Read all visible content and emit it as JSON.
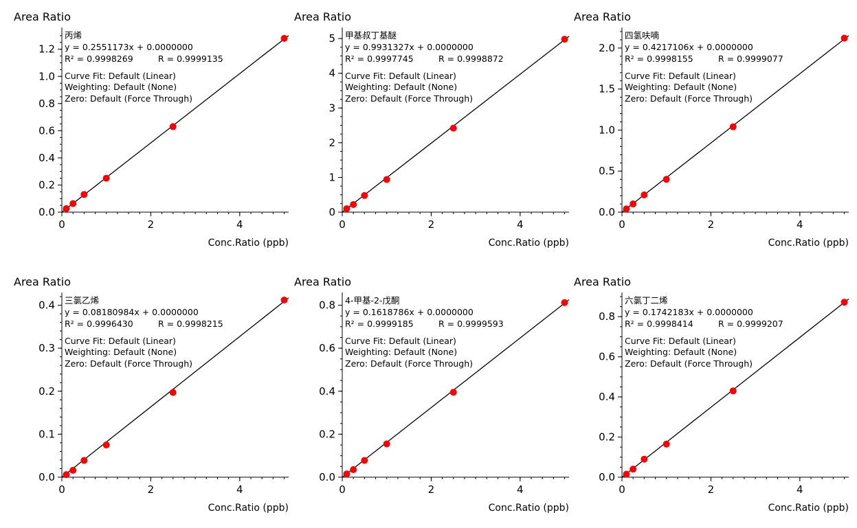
{
  "chart_data": [
    {
      "type": "scatter",
      "ylabel": "Area Ratio",
      "xlabel": "Conc.Ratio (ppb)",
      "compound": "丙烯",
      "equation": "y = 0.2551173x + 0.0000000",
      "r2_text": "R² = 0.9998269",
      "r_text": "R = 0.9999135",
      "curve_fit": "Curve Fit: Default (Linear)",
      "weighting": "Weighting: Default (None)",
      "zero": "Zero: Default (Force Through)",
      "slope": 0.2551173,
      "intercept": 0,
      "xlim": [
        0,
        5.1
      ],
      "ylim": [
        0,
        1.33
      ],
      "xticks": [
        {
          "v": 0,
          "label": "0"
        },
        {
          "v": 2,
          "label": "2"
        },
        {
          "v": 4,
          "label": "4"
        }
      ],
      "yticks": [
        {
          "v": 0,
          "label": "0.0"
        },
        {
          "v": 0.2,
          "label": "0.2"
        },
        {
          "v": 0.4,
          "label": "0.4"
        },
        {
          "v": 0.6,
          "label": "0.6"
        },
        {
          "v": 0.8,
          "label": "0.8"
        },
        {
          "v": 1.0,
          "label": "1.0"
        },
        {
          "v": 1.2,
          "label": "1.2"
        }
      ],
      "y_minor_step": 0.05,
      "x": [
        0.1,
        0.25,
        0.5,
        1.0,
        2.5,
        5.0
      ],
      "y": [
        0.026,
        0.063,
        0.13,
        0.25,
        0.63,
        1.28
      ],
      "point_color": "#ff0000",
      "line_color": "#000000"
    },
    {
      "type": "scatter",
      "ylabel": "Area Ratio",
      "xlabel": "Conc.Ratio (ppb)",
      "compound": "甲基叔丁基醚",
      "equation": "y = 0.9931327x + 0.0000000",
      "r2_text": "R² = 0.9997745",
      "r_text": "R = 0.9998872",
      "curve_fit": "Curve Fit: Default (Linear)",
      "weighting": "Weighting: Default (None)",
      "zero": "Zero: Default (Force Through)",
      "slope": 0.9931327,
      "intercept": 0,
      "xlim": [
        0,
        5.1
      ],
      "ylim": [
        0,
        5.2
      ],
      "xticks": [
        {
          "v": 0,
          "label": "0"
        },
        {
          "v": 2,
          "label": "2"
        },
        {
          "v": 4,
          "label": "4"
        }
      ],
      "yticks": [
        {
          "v": 0,
          "label": "0"
        },
        {
          "v": 1,
          "label": "1"
        },
        {
          "v": 2,
          "label": "2"
        },
        {
          "v": 3,
          "label": "3"
        },
        {
          "v": 4,
          "label": "4"
        },
        {
          "v": 5,
          "label": "5"
        }
      ],
      "y_minor_step": 0.25,
      "x": [
        0.1,
        0.25,
        0.5,
        1.0,
        2.5,
        5.0
      ],
      "y": [
        0.1,
        0.22,
        0.48,
        0.94,
        2.42,
        4.98
      ],
      "point_color": "#ff0000",
      "line_color": "#000000"
    },
    {
      "type": "scatter",
      "ylabel": "Area Ratio",
      "xlabel": "Conc.Ratio (ppb)",
      "compound": "四氢呋喃",
      "equation": "y = 0.4217106x + 0.0000000",
      "r2_text": "R² = 0.9998155",
      "r_text": "R = 0.9999077",
      "curve_fit": "Curve Fit: Default (Linear)",
      "weighting": "Weighting: Default (None)",
      "zero": "Zero: Default (Force Through)",
      "slope": 0.4217106,
      "intercept": 0,
      "xlim": [
        0,
        5.1
      ],
      "ylim": [
        0,
        2.2
      ],
      "xticks": [
        {
          "v": 0,
          "label": "0"
        },
        {
          "v": 2,
          "label": "2"
        },
        {
          "v": 4,
          "label": "4"
        }
      ],
      "yticks": [
        {
          "v": 0,
          "label": "0.0"
        },
        {
          "v": 0.5,
          "label": "0.5"
        },
        {
          "v": 1.0,
          "label": "1.0"
        },
        {
          "v": 1.5,
          "label": "1.5"
        },
        {
          "v": 2.0,
          "label": "2.0"
        }
      ],
      "y_minor_step": 0.1,
      "x": [
        0.1,
        0.25,
        0.5,
        1.0,
        2.5,
        5.0
      ],
      "y": [
        0.04,
        0.1,
        0.21,
        0.4,
        1.04,
        2.12
      ],
      "point_color": "#ff0000",
      "line_color": "#000000"
    },
    {
      "type": "scatter",
      "ylabel": "Area Ratio",
      "xlabel": "Conc.Ratio (ppb)",
      "compound": "三氯乙烯",
      "equation": "y = 0.08180984x + 0.0000000",
      "r2_text": "R² = 0.9996430",
      "r_text": "R = 0.9998215",
      "curve_fit": "Curve Fit: Default (Linear)",
      "weighting": "Weighting: Default (None)",
      "zero": "Zero: Default (Force Through)",
      "slope": 0.08180984,
      "intercept": 0,
      "xlim": [
        0,
        5.1
      ],
      "ylim": [
        0,
        0.42
      ],
      "xticks": [
        {
          "v": 0,
          "label": "0"
        },
        {
          "v": 2,
          "label": "2"
        },
        {
          "v": 4,
          "label": "4"
        }
      ],
      "yticks": [
        {
          "v": 0,
          "label": "0.0"
        },
        {
          "v": 0.1,
          "label": "0.1"
        },
        {
          "v": 0.2,
          "label": "0.2"
        },
        {
          "v": 0.3,
          "label": "0.3"
        },
        {
          "v": 0.4,
          "label": "0.4"
        }
      ],
      "y_minor_step": 0.02,
      "x": [
        0.1,
        0.25,
        0.5,
        1.0,
        2.5,
        5.0
      ],
      "y": [
        0.006,
        0.016,
        0.039,
        0.075,
        0.197,
        0.412
      ],
      "point_color": "#ff0000",
      "line_color": "#000000"
    },
    {
      "type": "scatter",
      "ylabel": "Area Ratio",
      "xlabel": "Conc.Ratio (ppb)",
      "compound": "4-甲基-2-戊酮",
      "equation": "y = 0.1618786x + 0.0000000",
      "r2_text": "R² = 0.9999185",
      "r_text": "R = 0.9999593",
      "curve_fit": "Curve Fit: Default (Linear)",
      "weighting": "Weighting: Default (None)",
      "zero": "Zero: Default (Force Through)",
      "slope": 0.1618786,
      "intercept": 0,
      "xlim": [
        0,
        5.1
      ],
      "ylim": [
        0,
        0.84
      ],
      "xticks": [
        {
          "v": 0,
          "label": "0"
        },
        {
          "v": 2,
          "label": "2"
        },
        {
          "v": 4,
          "label": "4"
        }
      ],
      "yticks": [
        {
          "v": 0,
          "label": "0.0"
        },
        {
          "v": 0.2,
          "label": "0.2"
        },
        {
          "v": 0.4,
          "label": "0.4"
        },
        {
          "v": 0.6,
          "label": "0.6"
        },
        {
          "v": 0.8,
          "label": "0.8"
        }
      ],
      "y_minor_step": 0.05,
      "x": [
        0.1,
        0.25,
        0.5,
        1.0,
        2.5,
        5.0
      ],
      "y": [
        0.015,
        0.035,
        0.078,
        0.155,
        0.395,
        0.812
      ],
      "point_color": "#ff0000",
      "line_color": "#000000"
    },
    {
      "type": "scatter",
      "ylabel": "Area Ratio",
      "xlabel": "Conc.Ratio (ppb)",
      "compound": "六氯丁二烯",
      "equation": "y = 0.1742183x + 0.0000000",
      "r2_text": "R² = 0.9998414",
      "r_text": "R = 0.9999207",
      "curve_fit": "Curve Fit: Default (Linear)",
      "weighting": "Weighting: Default (None)",
      "zero": "Zero: Default (Force Through)",
      "slope": 0.1742183,
      "intercept": 0,
      "xlim": [
        0,
        5.1
      ],
      "ylim": [
        0,
        0.9
      ],
      "xticks": [
        {
          "v": 0,
          "label": "0"
        },
        {
          "v": 2,
          "label": "2"
        },
        {
          "v": 4,
          "label": "4"
        }
      ],
      "yticks": [
        {
          "v": 0,
          "label": "0.0"
        },
        {
          "v": 0.2,
          "label": "0.2"
        },
        {
          "v": 0.4,
          "label": "0.4"
        },
        {
          "v": 0.6,
          "label": "0.6"
        },
        {
          "v": 0.8,
          "label": "0.8"
        }
      ],
      "y_minor_step": 0.05,
      "x": [
        0.1,
        0.25,
        0.5,
        1.0,
        2.5,
        5.0
      ],
      "y": [
        0.015,
        0.04,
        0.09,
        0.165,
        0.43,
        0.872
      ],
      "point_color": "#ff0000",
      "line_color": "#000000"
    }
  ]
}
